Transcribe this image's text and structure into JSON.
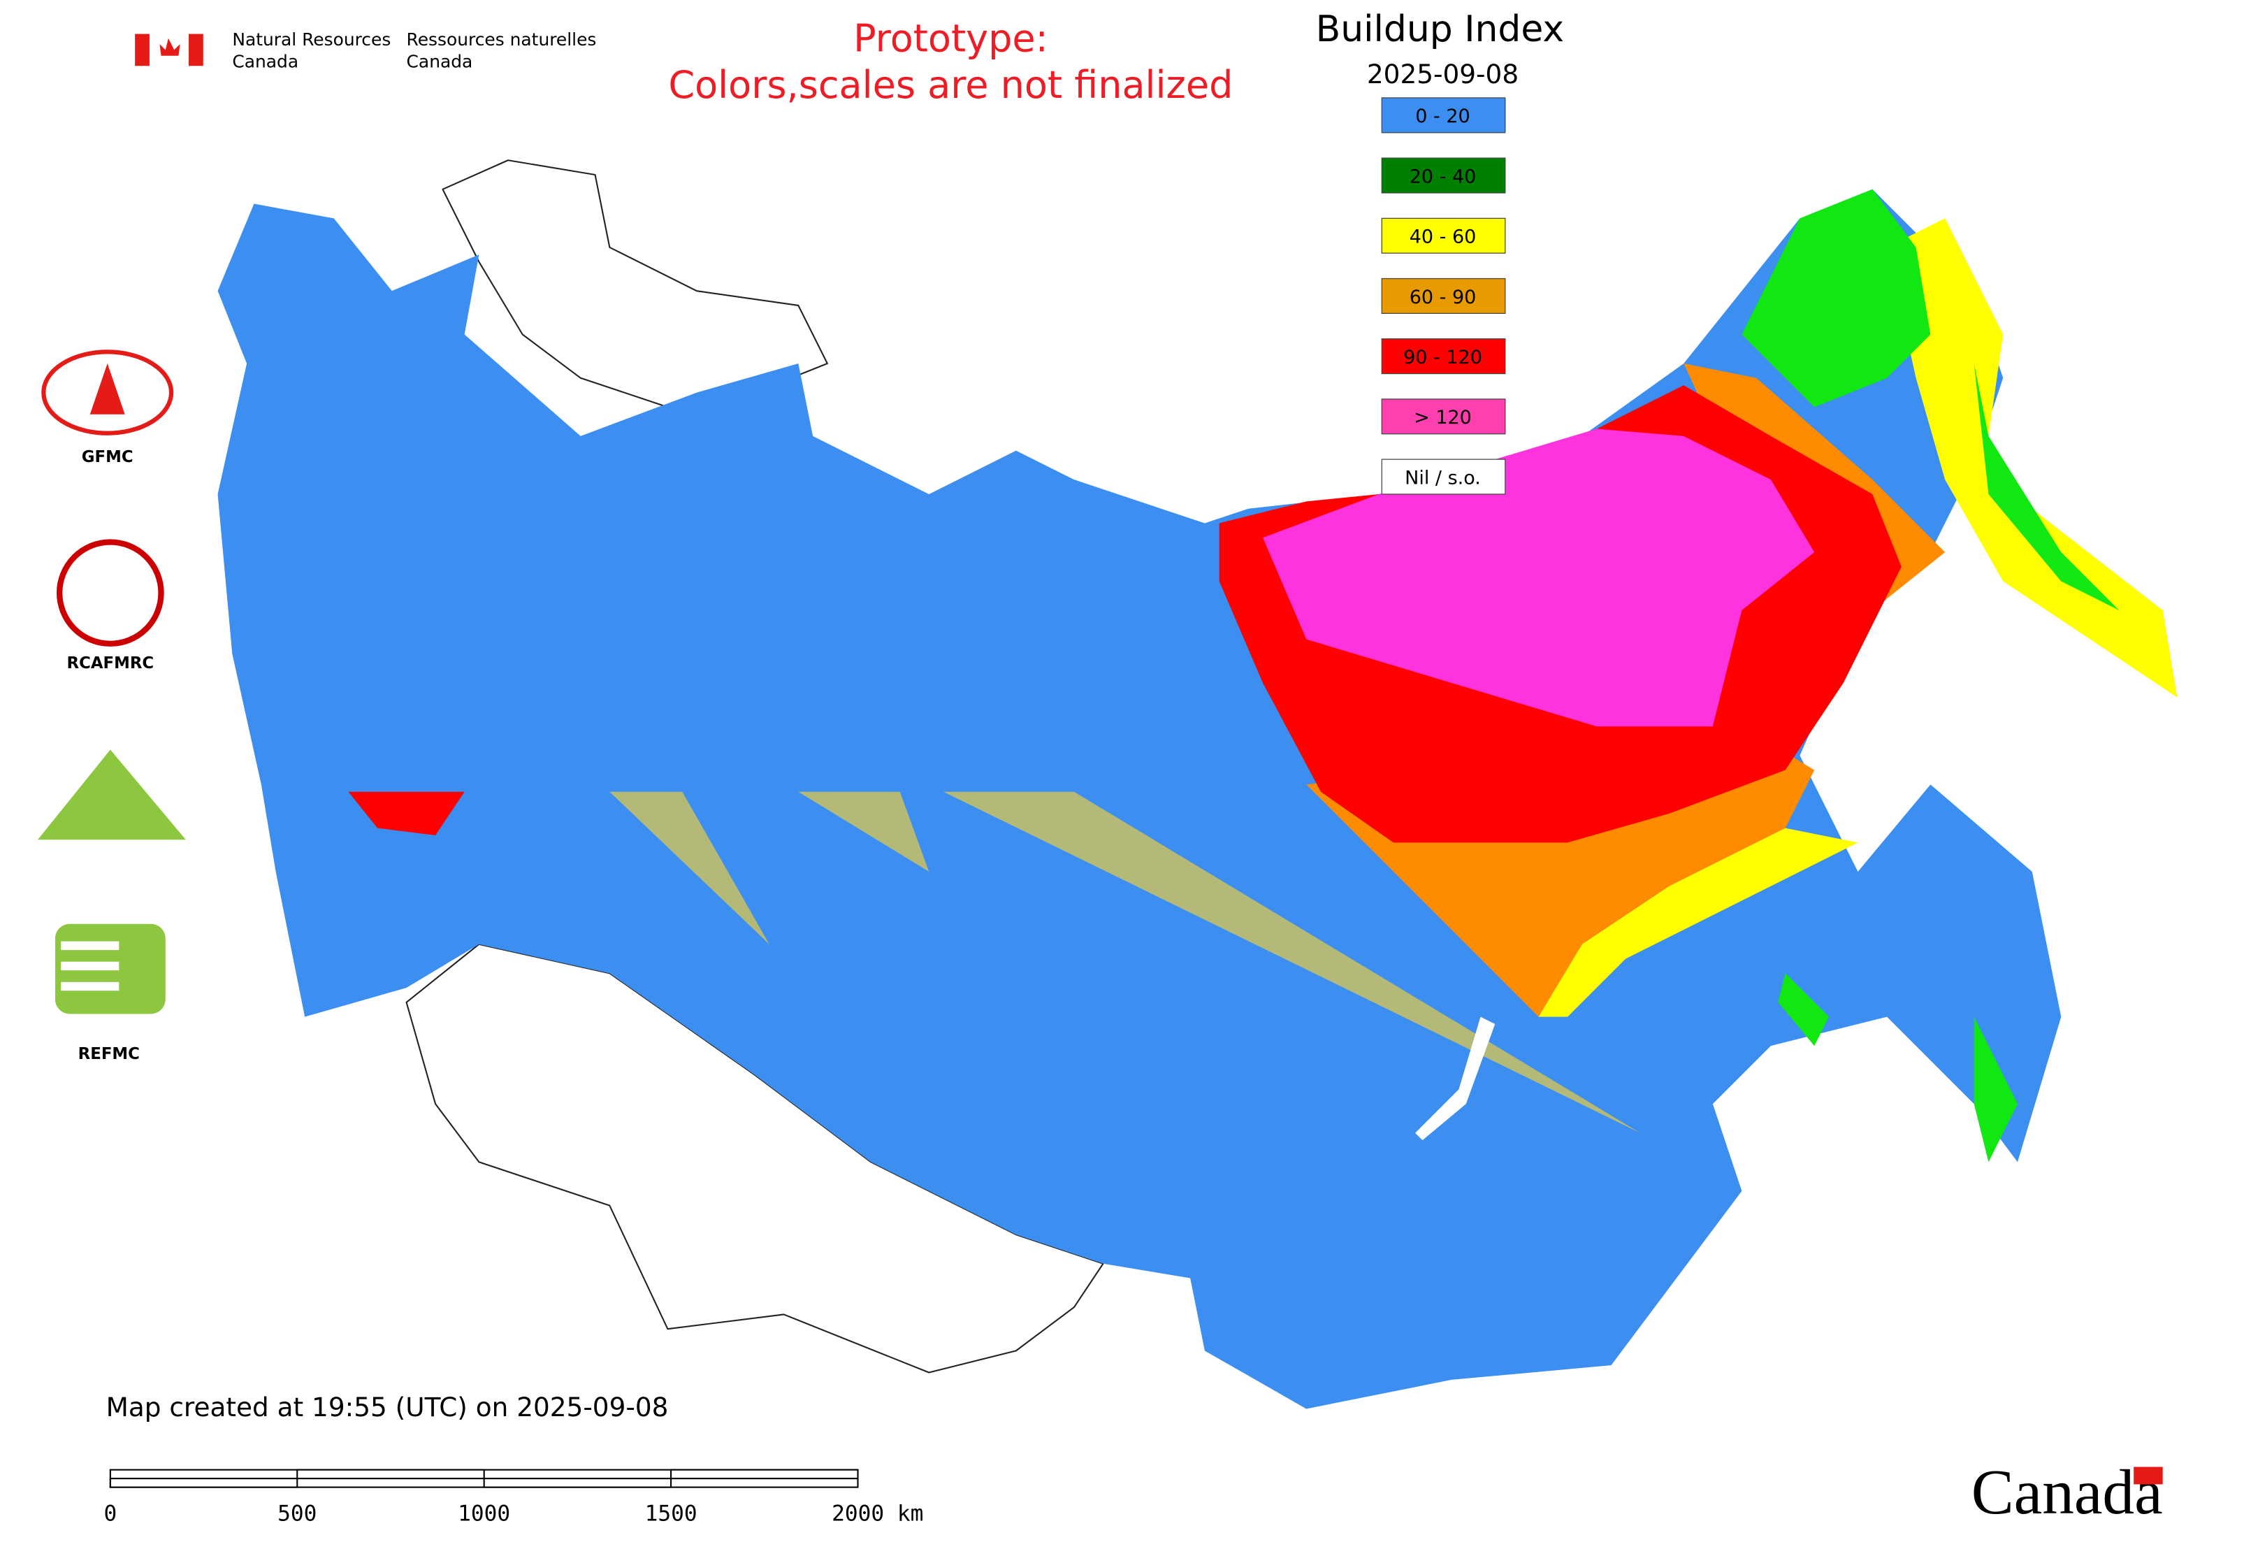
{
  "header": {
    "agency_en": [
      "Natural Resources",
      "Canada"
    ],
    "agency_fr": [
      "Ressources naturelles",
      "Canada"
    ],
    "notice": [
      "Prototype:",
      "Colors,scales are not finalized"
    ]
  },
  "map": {
    "title": "Buildup Index",
    "date": "2025-09-08",
    "created": "Map created at 19:55 (UTC) on 2025-09-08"
  },
  "legend": [
    {
      "label": "0 - 20",
      "color": "#3c8ef0"
    },
    {
      "label": "20 - 40",
      "color": "#008000"
    },
    {
      "label": "40 - 60",
      "color": "#ffff00"
    },
    {
      "label": "60 - 90",
      "color": "#e89b00"
    },
    {
      "label": "90 - 120",
      "color": "#ff0000"
    },
    {
      "label": "> 120",
      "color": "#ff3fae"
    },
    {
      "label": "Nil / s.o.",
      "color": "#ffffff"
    }
  ],
  "scale_bar": [
    "0",
    "500",
    "1000",
    "1500",
    "2000 km"
  ],
  "logos": [
    "GFMC",
    "RCAFMRC",
    "REFMC"
  ],
  "wordmark": "Canada"
}
